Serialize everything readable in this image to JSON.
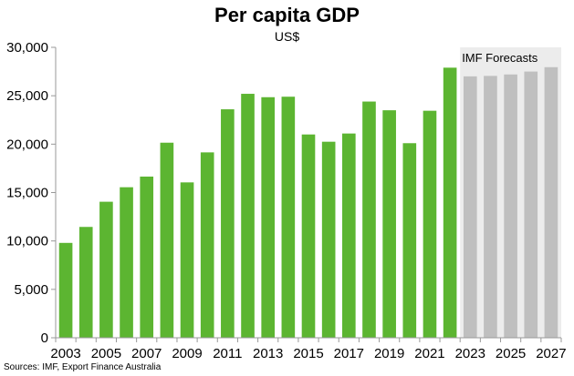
{
  "chart_data": {
    "type": "bar",
    "title": "Per capita GDP",
    "subtitle": "US$",
    "source": "Sources: IMF, Export Finance Australia",
    "forecast_label": "IMF Forecasts",
    "categories": [
      "2003",
      "2004",
      "2005",
      "2006",
      "2007",
      "2008",
      "2009",
      "2010",
      "2011",
      "2012",
      "2013",
      "2014",
      "2015",
      "2016",
      "2017",
      "2018",
      "2019",
      "2020",
      "2021",
      "2022",
      "2023",
      "2024",
      "2025",
      "2026",
      "2027"
    ],
    "x_tick_labels": [
      "2003",
      "2005",
      "2007",
      "2009",
      "2011",
      "2013",
      "2015",
      "2017",
      "2019",
      "2021",
      "2023",
      "2025",
      "2027"
    ],
    "values": [
      9800,
      11450,
      14050,
      15550,
      16650,
      20150,
      16050,
      19150,
      23600,
      25200,
      24850,
      24900,
      21000,
      20250,
      21100,
      24400,
      23500,
      20100,
      23450,
      27900,
      27000,
      27050,
      27200,
      27500,
      27950
    ],
    "forecast_from": "2023",
    "ylim": [
      0,
      30000
    ],
    "y_ticks": [
      0,
      5000,
      10000,
      15000,
      20000,
      25000,
      30000
    ],
    "y_tick_labels": [
      "0",
      "5,000",
      "10,000",
      "15,000",
      "20,000",
      "25,000",
      "30,000"
    ],
    "colors": {
      "actual": "#5cb531",
      "forecast": "#bfbfbf",
      "forecast_band": "#ececec",
      "axis": "#999999"
    },
    "legend": "none",
    "grid": false
  }
}
